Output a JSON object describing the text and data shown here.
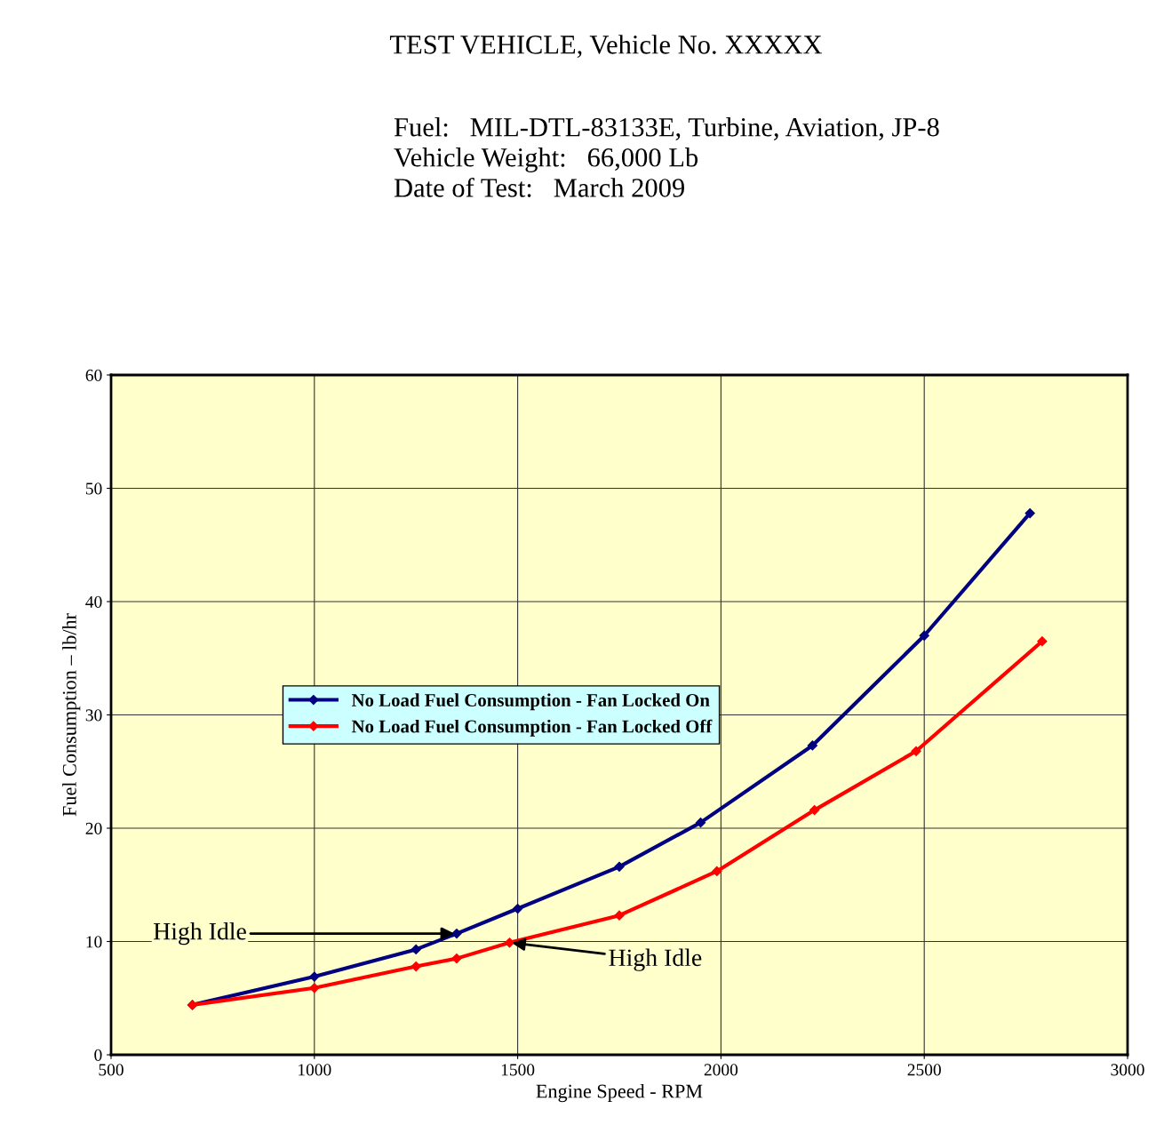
{
  "chart_data": {
    "type": "line",
    "title": "TEST VEHICLE, Vehicle No. XXXXX",
    "subtitle": "Fuel:   MIL-DTL-83133E, Turbine, Aviation, JP-8\nVehicle Weight:   66,000 Lb\nDate of Test:   March 2009",
    "xlabel": "Engine Speed - RPM",
    "ylabel": "Fuel Consumption – lb/hr",
    "series": [
      {
        "name": "No Load Fuel Consumption - Fan Locked On",
        "color": "#000080",
        "x": [
          700,
          1000,
          1250,
          1350,
          1500,
          1750,
          1950,
          2225,
          2500,
          2760
        ],
        "values": [
          4.4,
          6.9,
          9.3,
          10.7,
          12.9,
          16.6,
          20.5,
          27.3,
          37.0,
          47.8
        ]
      },
      {
        "name": "No Load Fuel Consumption - Fan Locked Off",
        "color": "#ff0000",
        "x": [
          700,
          1000,
          1250,
          1350,
          1480,
          1750,
          1990,
          2230,
          2480,
          2790
        ],
        "values": [
          4.4,
          5.9,
          7.8,
          8.5,
          9.9,
          12.3,
          16.2,
          21.6,
          26.8,
          36.5
        ]
      }
    ],
    "xlim": [
      500,
      3000
    ],
    "xticks": [
      500,
      1000,
      1500,
      2000,
      2500,
      3000
    ],
    "ylim": [
      0,
      60
    ],
    "yticks": [
      0,
      10,
      20,
      30,
      40,
      50,
      60
    ],
    "grid": true,
    "legend": "left",
    "marker": "diamond",
    "line_style": "solid",
    "annotations": [
      {
        "text": "High Idle",
        "x": 1350,
        "y": 10.7
      },
      {
        "text": "High Idle",
        "x": 1480,
        "y": 9.9
      }
    ]
  }
}
